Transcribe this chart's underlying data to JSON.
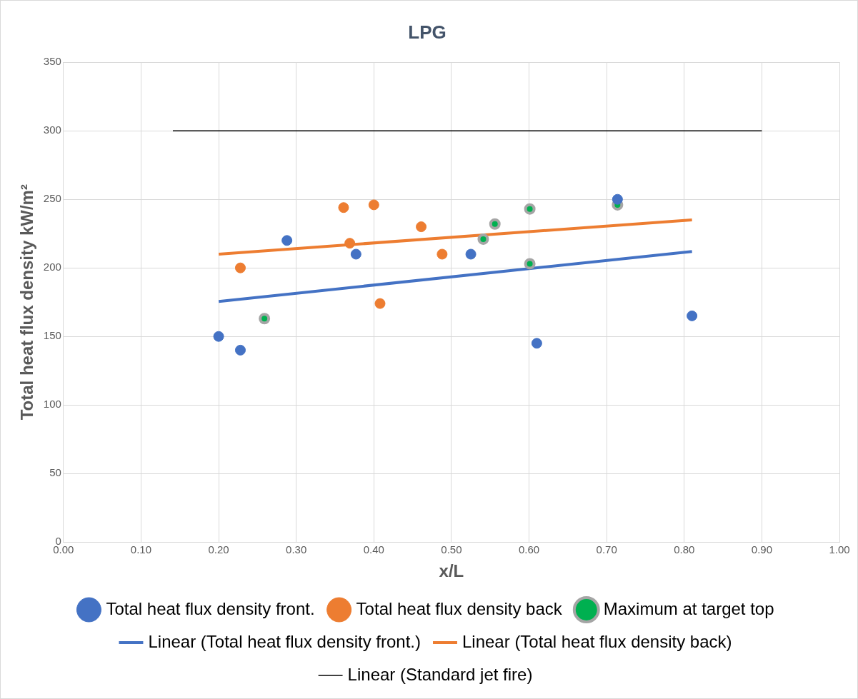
{
  "chart_data": {
    "type": "scatter",
    "title": "LPG",
    "xlabel": "x/L",
    "ylabel": "Total heat flux density kW/m²",
    "xlim": [
      0,
      1
    ],
    "xticks": [
      {
        "value": 0,
        "label": "0.00"
      },
      {
        "value": 0.1,
        "label": "0.10"
      },
      {
        "value": 0.2,
        "label": "0.20"
      },
      {
        "value": 0.3,
        "label": "0.30"
      },
      {
        "value": 0.4,
        "label": "0.40"
      },
      {
        "value": 0.5,
        "label": "0.50"
      },
      {
        "value": 0.6,
        "label": "0.60"
      },
      {
        "value": 0.7,
        "label": "0.70"
      },
      {
        "value": 0.8,
        "label": "0.80"
      },
      {
        "value": 0.9,
        "label": "0.90"
      },
      {
        "value": 1,
        "label": "1.00"
      }
    ],
    "ylim": [
      0,
      350
    ],
    "yticks": [
      0,
      50,
      100,
      150,
      200,
      250,
      300,
      350
    ],
    "grid": true,
    "legend": "bottom",
    "marker": "circle",
    "series": [
      {
        "name": "Total heat flux density front.",
        "color": "#4472c4",
        "x": [
          0.2,
          0.228,
          0.288,
          0.377,
          0.525,
          0.61,
          0.714,
          0.81
        ],
        "values": [
          150,
          140,
          220,
          210,
          210,
          145,
          250,
          165
        ]
      },
      {
        "name": "Total heat flux density back",
        "color": "#ed7d31",
        "x": [
          0.228,
          0.361,
          0.369,
          0.4,
          0.408,
          0.461,
          0.488
        ],
        "values": [
          200,
          244,
          218,
          246,
          174,
          230,
          210
        ]
      },
      {
        "name": "Maximum at target top",
        "color": "#a5a5a5",
        "x": [
          0.259,
          0.541,
          0.556,
          0.601,
          0.601,
          0.714
        ],
        "values": [
          163,
          221,
          232,
          243,
          203,
          246
        ]
      },
      {
        "name": "Linear (Total heat flux density front.)",
        "type": "line",
        "color": "#4472c4",
        "line_style": "solid",
        "marker": "none",
        "x": [
          0.2,
          0.81
        ],
        "values": [
          175.5,
          212
        ]
      },
      {
        "name": "Linear (Total heat flux density back)",
        "type": "line",
        "color": "#ed7d31",
        "line_style": "solid",
        "marker": "none",
        "x": [
          0.2,
          0.81
        ],
        "values": [
          210,
          235
        ]
      },
      {
        "name": "Linear (Standard jet fire)",
        "type": "line",
        "color": "#000000",
        "line_style": "solid",
        "marker": "none",
        "x": [
          0.141,
          0.9
        ],
        "values": [
          300,
          300
        ]
      }
    ]
  }
}
